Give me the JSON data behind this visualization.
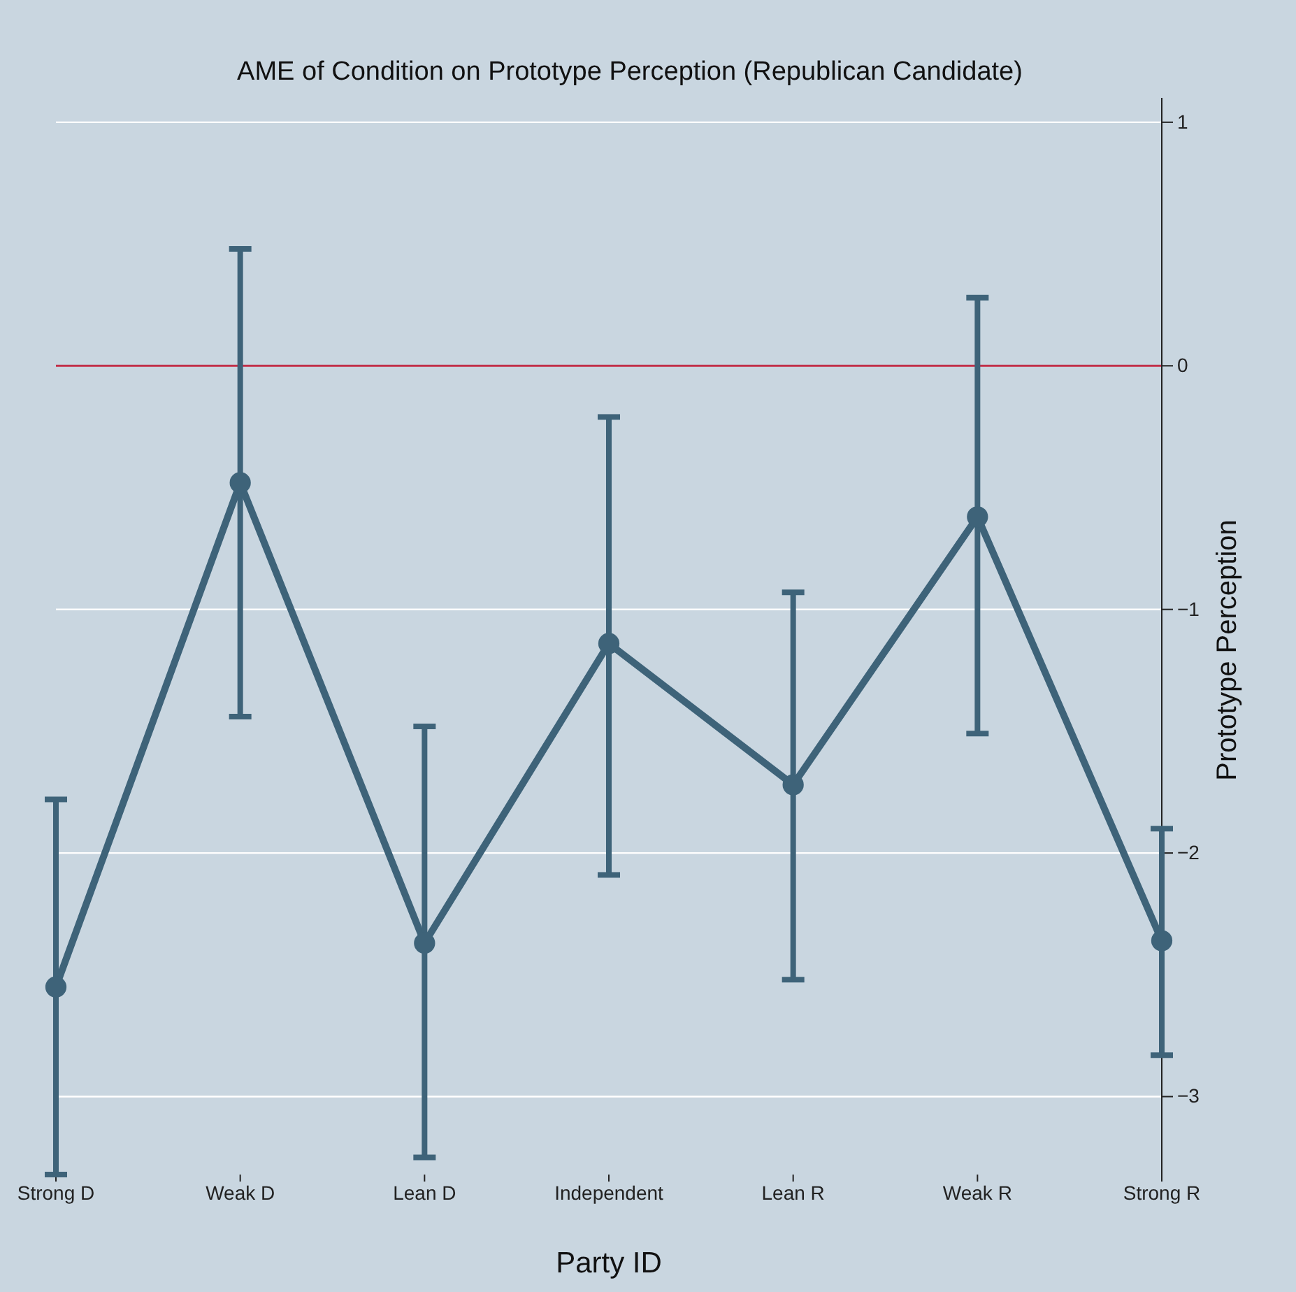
{
  "chart_data": {
    "type": "line",
    "title": "AME of Condition on Prototype Perception (Republican Candidate)",
    "xlabel": "Party ID",
    "ylabel": "Prototype Perception",
    "categories": [
      "Strong D",
      "Weak D",
      "Lean D",
      "Independent",
      "Lean R",
      "Weak R",
      "Strong R"
    ],
    "series": [
      {
        "color": "#3e6379",
        "values": [
          -2.55,
          -0.48,
          -2.37,
          -1.14,
          -1.72,
          -0.62,
          -2.36
        ],
        "errors": [
          [
            -3.32,
            -1.78
          ],
          [
            -1.44,
            0.48
          ],
          [
            -3.25,
            -1.48
          ],
          [
            -2.09,
            -0.21
          ],
          [
            -2.52,
            -0.93
          ],
          [
            -1.51,
            0.28
          ],
          [
            -2.83,
            -1.9
          ]
        ]
      }
    ],
    "ylim": [
      -3.32,
      1.1
    ],
    "yticks": [
      -3,
      -2,
      -1,
      0,
      1
    ],
    "grid": "y",
    "marker": "circle",
    "line_style": "solid",
    "ref_lines": [
      {
        "axis": "y",
        "value": 0,
        "color": "#c0304a"
      }
    ]
  }
}
